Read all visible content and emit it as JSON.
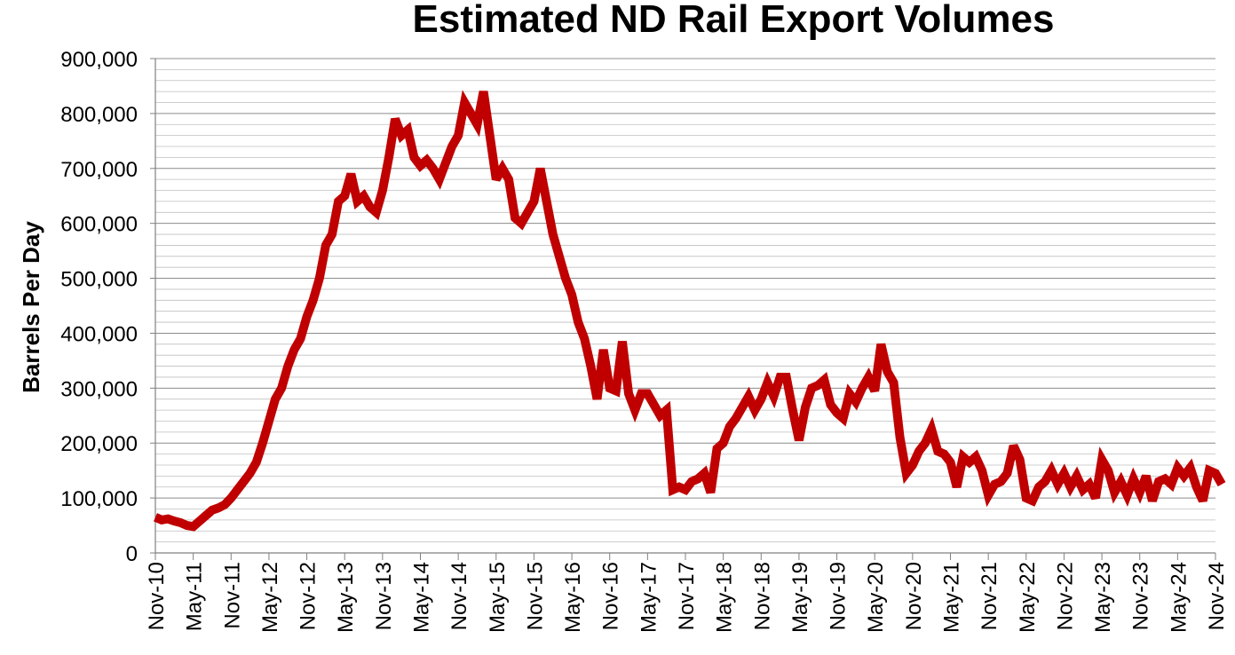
{
  "chart_data": {
    "type": "line",
    "title": "Estimated ND Rail Export Volumes",
    "xlabel": "",
    "ylabel": "Barrels Per Day",
    "ylim": [
      0,
      900000
    ],
    "yticks": [
      0,
      100000,
      200000,
      300000,
      400000,
      500000,
      600000,
      700000,
      800000,
      900000
    ],
    "ytick_labels": [
      "0",
      "100,000",
      "200,000",
      "300,000",
      "400,000",
      "500,000",
      "600,000",
      "700,000",
      "800,000",
      "900,000"
    ],
    "xlim": [
      "2010-11",
      "2024-11"
    ],
    "xtick_labels": [
      "Nov-10",
      "May-11",
      "Nov-11",
      "May-12",
      "Nov-12",
      "May-13",
      "Nov-13",
      "May-14",
      "Nov-14",
      "May-15",
      "Nov-15",
      "May-16",
      "Nov-16",
      "May-17",
      "Nov-17",
      "May-18",
      "Nov-18",
      "May-19",
      "Nov-19",
      "May-20",
      "Nov-20",
      "May-21",
      "Nov-21",
      "May-22",
      "Nov-22",
      "May-23",
      "Nov-23",
      "May-24",
      "Nov-24"
    ],
    "grid": true,
    "line_color": "#c00000",
    "series": [
      {
        "name": "",
        "points": [
          [
            "2010-11",
            65000
          ],
          [
            "2010-12",
            60000
          ],
          [
            "2011-01",
            62000
          ],
          [
            "2011-02",
            58000
          ],
          [
            "2011-03",
            55000
          ],
          [
            "2011-04",
            50000
          ],
          [
            "2011-05",
            48000
          ],
          [
            "2011-06",
            58000
          ],
          [
            "2011-07",
            68000
          ],
          [
            "2011-08",
            78000
          ],
          [
            "2011-09",
            82000
          ],
          [
            "2011-10",
            88000
          ],
          [
            "2011-11",
            100000
          ],
          [
            "2011-12",
            115000
          ],
          [
            "2012-01",
            130000
          ],
          [
            "2012-02",
            145000
          ],
          [
            "2012-03",
            165000
          ],
          [
            "2012-04",
            200000
          ],
          [
            "2012-05",
            240000
          ],
          [
            "2012-06",
            280000
          ],
          [
            "2012-07",
            300000
          ],
          [
            "2012-08",
            340000
          ],
          [
            "2012-09",
            370000
          ],
          [
            "2012-10",
            390000
          ],
          [
            "2012-11",
            430000
          ],
          [
            "2012-12",
            460000
          ],
          [
            "2013-01",
            500000
          ],
          [
            "2013-02",
            560000
          ],
          [
            "2013-03",
            580000
          ],
          [
            "2013-04",
            640000
          ],
          [
            "2013-05",
            650000
          ],
          [
            "2013-06",
            690000
          ],
          [
            "2013-07",
            640000
          ],
          [
            "2013-08",
            650000
          ],
          [
            "2013-09",
            630000
          ],
          [
            "2013-10",
            620000
          ],
          [
            "2013-11",
            660000
          ],
          [
            "2013-12",
            720000
          ],
          [
            "2014-01",
            790000
          ],
          [
            "2014-02",
            760000
          ],
          [
            "2014-03",
            770000
          ],
          [
            "2014-04",
            720000
          ],
          [
            "2014-05",
            705000
          ],
          [
            "2014-06",
            715000
          ],
          [
            "2014-07",
            700000
          ],
          [
            "2014-08",
            680000
          ],
          [
            "2014-09",
            710000
          ],
          [
            "2014-10",
            740000
          ],
          [
            "2014-11",
            760000
          ],
          [
            "2014-12",
            820000
          ],
          [
            "2015-01",
            800000
          ],
          [
            "2015-02",
            780000
          ],
          [
            "2015-03",
            840000
          ],
          [
            "2015-04",
            760000
          ],
          [
            "2015-05",
            680000
          ],
          [
            "2015-06",
            700000
          ],
          [
            "2015-07",
            680000
          ],
          [
            "2015-08",
            610000
          ],
          [
            "2015-09",
            600000
          ],
          [
            "2015-10",
            620000
          ],
          [
            "2015-11",
            640000
          ],
          [
            "2015-12",
            700000
          ],
          [
            "2016-01",
            640000
          ],
          [
            "2016-02",
            580000
          ],
          [
            "2016-03",
            540000
          ],
          [
            "2016-04",
            500000
          ],
          [
            "2016-05",
            470000
          ],
          [
            "2016-06",
            420000
          ],
          [
            "2016-07",
            390000
          ],
          [
            "2016-08",
            340000
          ],
          [
            "2016-09",
            280000
          ],
          [
            "2016-10",
            370000
          ],
          [
            "2016-11",
            300000
          ],
          [
            "2016-12",
            295000
          ],
          [
            "2017-01",
            385000
          ],
          [
            "2017-02",
            290000
          ],
          [
            "2017-03",
            260000
          ],
          [
            "2017-04",
            290000
          ],
          [
            "2017-05",
            290000
          ],
          [
            "2017-06",
            270000
          ],
          [
            "2017-07",
            250000
          ],
          [
            "2017-08",
            260000
          ],
          [
            "2017-09",
            115000
          ],
          [
            "2017-10",
            120000
          ],
          [
            "2017-11",
            115000
          ],
          [
            "2017-12",
            130000
          ],
          [
            "2018-01",
            135000
          ],
          [
            "2018-02",
            145000
          ],
          [
            "2018-03",
            110000
          ],
          [
            "2018-04",
            190000
          ],
          [
            "2018-05",
            200000
          ],
          [
            "2018-06",
            230000
          ],
          [
            "2018-07",
            245000
          ],
          [
            "2018-08",
            265000
          ],
          [
            "2018-09",
            285000
          ],
          [
            "2018-10",
            260000
          ],
          [
            "2018-11",
            280000
          ],
          [
            "2018-12",
            310000
          ],
          [
            "2019-01",
            285000
          ],
          [
            "2019-02",
            320000
          ],
          [
            "2019-03",
            320000
          ],
          [
            "2019-04",
            260000
          ],
          [
            "2019-05",
            205000
          ],
          [
            "2019-06",
            265000
          ],
          [
            "2019-07",
            300000
          ],
          [
            "2019-08",
            305000
          ],
          [
            "2019-09",
            315000
          ],
          [
            "2019-10",
            270000
          ],
          [
            "2019-11",
            255000
          ],
          [
            "2019-12",
            245000
          ],
          [
            "2020-01",
            290000
          ],
          [
            "2020-02",
            275000
          ],
          [
            "2020-03",
            300000
          ],
          [
            "2020-04",
            320000
          ],
          [
            "2020-05",
            295000
          ],
          [
            "2020-06",
            380000
          ],
          [
            "2020-07",
            330000
          ],
          [
            "2020-08",
            310000
          ],
          [
            "2020-09",
            210000
          ],
          [
            "2020-10",
            145000
          ],
          [
            "2020-11",
            160000
          ],
          [
            "2020-12",
            185000
          ],
          [
            "2021-01",
            200000
          ],
          [
            "2021-02",
            225000
          ],
          [
            "2021-03",
            185000
          ],
          [
            "2021-04",
            180000
          ],
          [
            "2021-05",
            165000
          ],
          [
            "2021-06",
            120000
          ],
          [
            "2021-07",
            175000
          ],
          [
            "2021-08",
            165000
          ],
          [
            "2021-09",
            175000
          ],
          [
            "2021-10",
            150000
          ],
          [
            "2021-11",
            105000
          ],
          [
            "2021-12",
            125000
          ],
          [
            "2022-01",
            130000
          ],
          [
            "2022-02",
            145000
          ],
          [
            "2022-03",
            195000
          ],
          [
            "2022-04",
            170000
          ],
          [
            "2022-05",
            100000
          ],
          [
            "2022-06",
            95000
          ],
          [
            "2022-07",
            120000
          ],
          [
            "2022-08",
            130000
          ],
          [
            "2022-09",
            150000
          ],
          [
            "2022-10",
            125000
          ],
          [
            "2022-11",
            145000
          ],
          [
            "2022-12",
            120000
          ],
          [
            "2023-01",
            140000
          ],
          [
            "2023-02",
            115000
          ],
          [
            "2023-03",
            125000
          ],
          [
            "2023-04",
            100000
          ],
          [
            "2023-05",
            170000
          ],
          [
            "2023-06",
            150000
          ],
          [
            "2023-07",
            110000
          ],
          [
            "2023-08",
            130000
          ],
          [
            "2023-09",
            105000
          ],
          [
            "2023-10",
            135000
          ],
          [
            "2023-11",
            110000
          ],
          [
            "2023-12",
            140000
          ],
          [
            "2024-01",
            95000
          ],
          [
            "2024-02",
            130000
          ],
          [
            "2024-03",
            135000
          ],
          [
            "2024-04",
            125000
          ],
          [
            "2024-05",
            155000
          ],
          [
            "2024-06",
            140000
          ],
          [
            "2024-07",
            155000
          ],
          [
            "2024-08",
            120000
          ],
          [
            "2024-09",
            95000
          ],
          [
            "2024-10",
            150000
          ],
          [
            "2024-11",
            145000
          ],
          [
            "2024-12",
            125000
          ]
        ]
      }
    ]
  }
}
